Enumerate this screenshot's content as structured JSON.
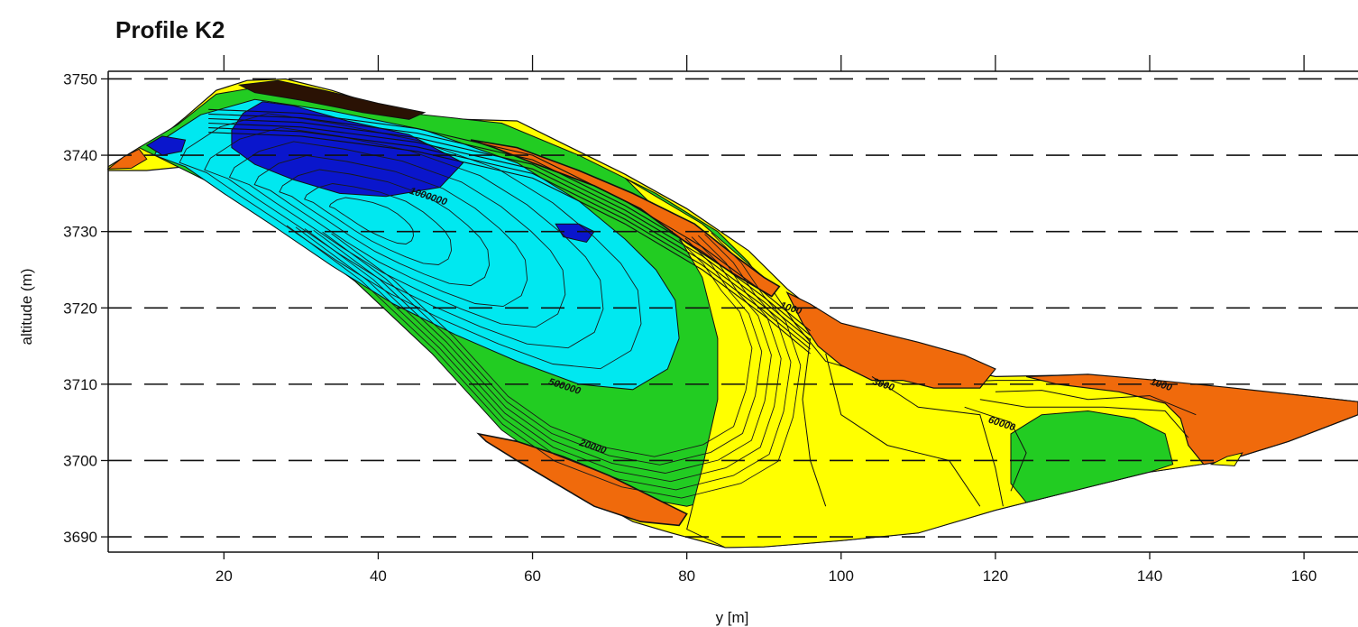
{
  "chart_data": {
    "type": "contour",
    "title": "Profile K2",
    "xlabel": "y [m]",
    "ylabel": "altitude (m)",
    "xlim": [
      5,
      167
    ],
    "ylim": [
      3688,
      3751
    ],
    "x_ticks": [
      20,
      40,
      60,
      80,
      100,
      120,
      140,
      160
    ],
    "y_ticks": [
      3690,
      3700,
      3710,
      3720,
      3730,
      3740,
      3750
    ],
    "grid": "horizontal dashed lines",
    "contour_labels": [
      {
        "text": "1000000",
        "x": 44,
        "y": 3735
      },
      {
        "text": "500000",
        "x": 62,
        "y": 3710
      },
      {
        "text": "3000",
        "x": 104,
        "y": 3710
      },
      {
        "text": "1000",
        "x": 92,
        "y": 3720
      },
      {
        "text": "60000",
        "x": 119,
        "y": 3705
      },
      {
        "text": "1000",
        "x": 140,
        "y": 3710
      },
      {
        "text": "20000",
        "x": 66,
        "y": 3702
      }
    ],
    "colors": {
      "blue": "#0a16cc",
      "cyan": "#00e8f0",
      "green": "#22cc22",
      "yellow": "#ffff00",
      "orange": "#f06a0c"
    }
  }
}
